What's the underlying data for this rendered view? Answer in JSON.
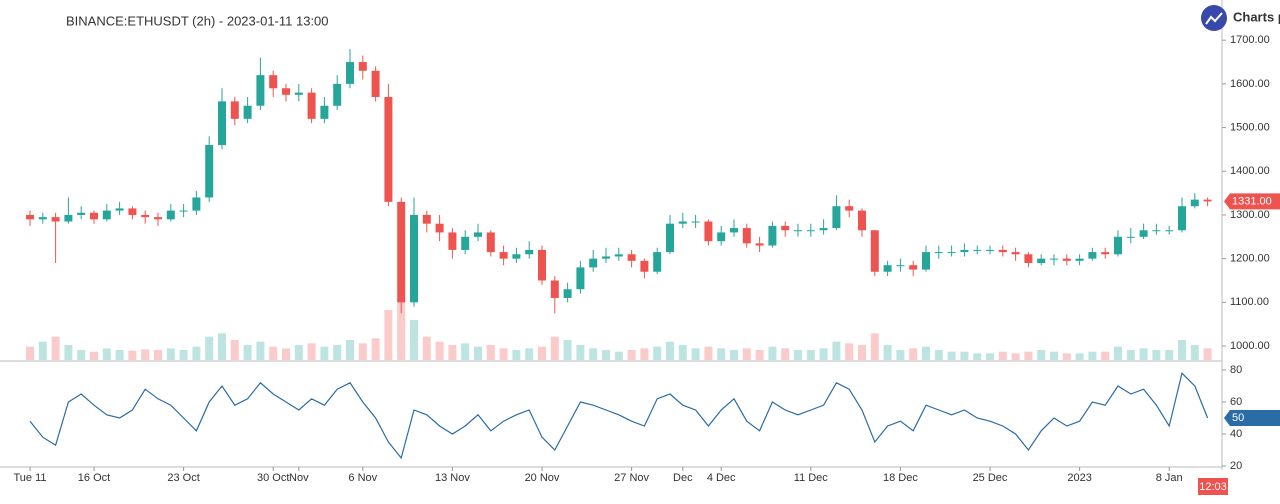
{
  "header": {
    "title": "BINANCE:ETHUSDT (2h) - 2023-01-11 13:00"
  },
  "branding": {
    "text": "Charts p"
  },
  "time_tag": "12:03",
  "chart_data": [
    {
      "type": "candlestick",
      "up_color": "#26a69a",
      "down_color": "#ef5350",
      "open": [
        1300,
        1290,
        1295,
        1285,
        1300,
        1305,
        1290,
        1310,
        1315,
        1300,
        1295,
        1290,
        1310,
        1310,
        1340,
        1460,
        1560,
        1520,
        1550,
        1620,
        1590,
        1575,
        1580,
        1520,
        1550,
        1600,
        1650,
        1630,
        1570,
        1330,
        1100,
        1300,
        1280,
        1260,
        1220,
        1250,
        1260,
        1215,
        1200,
        1210,
        1220,
        1150,
        1110,
        1130,
        1180,
        1200,
        1205,
        1210,
        1195,
        1170,
        1215,
        1280,
        1285,
        1285,
        1240,
        1260,
        1270,
        1235,
        1230,
        1275,
        1265,
        1265,
        1265,
        1270,
        1320,
        1310,
        1265,
        1170,
        1185,
        1185,
        1175,
        1215,
        1215,
        1215,
        1220,
        1220,
        1220,
        1215,
        1210,
        1190,
        1200,
        1200,
        1195,
        1200,
        1215,
        1210,
        1250,
        1250,
        1265,
        1265,
        1265,
        1320,
        1335
      ],
      "high": [
        1310,
        1305,
        1305,
        1340,
        1320,
        1310,
        1325,
        1330,
        1320,
        1310,
        1305,
        1325,
        1325,
        1355,
        1480,
        1590,
        1570,
        1570,
        1660,
        1630,
        1600,
        1600,
        1590,
        1570,
        1620,
        1680,
        1665,
        1640,
        1600,
        1340,
        1340,
        1310,
        1300,
        1270,
        1265,
        1280,
        1265,
        1230,
        1225,
        1240,
        1230,
        1160,
        1145,
        1195,
        1220,
        1225,
        1225,
        1220,
        1200,
        1225,
        1300,
        1305,
        1300,
        1290,
        1275,
        1290,
        1280,
        1250,
        1285,
        1285,
        1280,
        1280,
        1290,
        1345,
        1335,
        1315,
        1265,
        1195,
        1200,
        1195,
        1230,
        1230,
        1230,
        1235,
        1230,
        1230,
        1230,
        1225,
        1215,
        1210,
        1210,
        1210,
        1210,
        1225,
        1225,
        1265,
        1270,
        1280,
        1280,
        1275,
        1340,
        1350,
        1340
      ],
      "low": [
        1275,
        1280,
        1190,
        1280,
        1290,
        1280,
        1285,
        1300,
        1290,
        1280,
        1275,
        1285,
        1295,
        1300,
        1330,
        1450,
        1505,
        1510,
        1540,
        1570,
        1560,
        1560,
        1510,
        1510,
        1540,
        1590,
        1610,
        1560,
        1320,
        1075,
        1090,
        1260,
        1240,
        1200,
        1210,
        1240,
        1205,
        1185,
        1190,
        1200,
        1140,
        1075,
        1100,
        1120,
        1170,
        1190,
        1195,
        1180,
        1155,
        1165,
        1210,
        1270,
        1270,
        1230,
        1230,
        1250,
        1225,
        1215,
        1225,
        1250,
        1250,
        1250,
        1255,
        1265,
        1295,
        1250,
        1160,
        1160,
        1170,
        1160,
        1170,
        1200,
        1205,
        1205,
        1210,
        1210,
        1205,
        1195,
        1180,
        1185,
        1185,
        1185,
        1185,
        1195,
        1200,
        1205,
        1235,
        1245,
        1255,
        1255,
        1260,
        1315,
        1320
      ],
      "close": [
        1290,
        1295,
        1285,
        1300,
        1305,
        1290,
        1310,
        1315,
        1300,
        1295,
        1290,
        1310,
        1310,
        1340,
        1460,
        1560,
        1520,
        1550,
        1620,
        1590,
        1575,
        1580,
        1520,
        1550,
        1600,
        1650,
        1630,
        1570,
        1330,
        1100,
        1300,
        1280,
        1260,
        1220,
        1250,
        1260,
        1215,
        1200,
        1210,
        1220,
        1150,
        1110,
        1130,
        1180,
        1200,
        1205,
        1210,
        1195,
        1170,
        1215,
        1280,
        1285,
        1285,
        1240,
        1260,
        1270,
        1235,
        1230,
        1275,
        1265,
        1265,
        1265,
        1270,
        1320,
        1310,
        1265,
        1170,
        1185,
        1185,
        1175,
        1215,
        1215,
        1215,
        1220,
        1220,
        1220,
        1215,
        1210,
        1190,
        1200,
        1200,
        1195,
        1200,
        1215,
        1210,
        1250,
        1250,
        1265,
        1265,
        1265,
        1320,
        1335,
        1331
      ],
      "volume": [
        40,
        55,
        70,
        45,
        30,
        25,
        35,
        30,
        28,
        32,
        30,
        35,
        30,
        40,
        70,
        80,
        60,
        45,
        55,
        40,
        35,
        45,
        50,
        40,
        45,
        60,
        50,
        65,
        150,
        180,
        120,
        70,
        55,
        45,
        50,
        40,
        45,
        35,
        30,
        35,
        40,
        70,
        60,
        45,
        35,
        30,
        25,
        30,
        35,
        40,
        55,
        45,
        35,
        40,
        35,
        30,
        35,
        30,
        40,
        35,
        30,
        30,
        35,
        55,
        50,
        45,
        80,
        45,
        30,
        35,
        40,
        30,
        25,
        25,
        20,
        20,
        25,
        20,
        25,
        30,
        25,
        20,
        20,
        25,
        25,
        40,
        30,
        35,
        30,
        30,
        60,
        45,
        35
      ],
      "ylim": [
        968,
        1792
      ],
      "yticks": [
        {
          "value": 1000,
          "label": "1000.00"
        },
        {
          "value": 1100,
          "label": "1100.00"
        },
        {
          "value": 1200,
          "label": "1200.00"
        },
        {
          "value": 1300,
          "label": "1300.00"
        },
        {
          "value": 1400,
          "label": "1400.00"
        },
        {
          "value": 1500,
          "label": "1500.00"
        },
        {
          "value": 1600,
          "label": "1600.00"
        },
        {
          "value": 1700,
          "label": "1700.00"
        }
      ],
      "last_label": "1331.00"
    },
    {
      "type": "line",
      "color": "#2a6ca6",
      "categories": [
        "Tue 11",
        null,
        null,
        null,
        null,
        "16 Oct",
        null,
        null,
        null,
        null,
        null,
        null,
        "23 Oct",
        null,
        null,
        null,
        null,
        null,
        null,
        "30 Oct",
        null,
        "Nov",
        null,
        null,
        null,
        null,
        "6 Nov",
        null,
        null,
        null,
        null,
        null,
        null,
        "13 Nov",
        null,
        null,
        null,
        null,
        null,
        null,
        "20 Nov",
        null,
        null,
        null,
        null,
        null,
        null,
        "27 Nov",
        null,
        null,
        null,
        "Dec",
        null,
        null,
        "4 Dec",
        null,
        null,
        null,
        null,
        null,
        null,
        "11 Dec",
        null,
        null,
        null,
        null,
        null,
        null,
        "18 Dec",
        null,
        null,
        null,
        null,
        null,
        null,
        "25 Dec",
        null,
        null,
        null,
        null,
        null,
        null,
        "2023",
        null,
        null,
        null,
        null,
        null,
        null,
        "8 Jan",
        null,
        null,
        null
      ],
      "values": [
        48,
        38,
        33,
        60,
        65,
        58,
        52,
        50,
        55,
        68,
        62,
        58,
        50,
        42,
        60,
        70,
        58,
        62,
        72,
        65,
        60,
        55,
        62,
        58,
        68,
        72,
        60,
        50,
        35,
        25,
        55,
        52,
        45,
        40,
        45,
        52,
        42,
        48,
        52,
        55,
        38,
        30,
        45,
        60,
        58,
        55,
        52,
        48,
        45,
        62,
        65,
        58,
        55,
        45,
        55,
        62,
        48,
        42,
        60,
        55,
        52,
        55,
        58,
        72,
        68,
        55,
        35,
        45,
        48,
        42,
        58,
        55,
        52,
        55,
        50,
        48,
        45,
        40,
        30,
        42,
        50,
        45,
        48,
        60,
        58,
        70,
        65,
        68,
        58,
        45,
        78,
        70,
        50
      ],
      "ylim": [
        20,
        85
      ],
      "yticks": [
        20,
        40,
        60,
        80
      ]
    }
  ]
}
